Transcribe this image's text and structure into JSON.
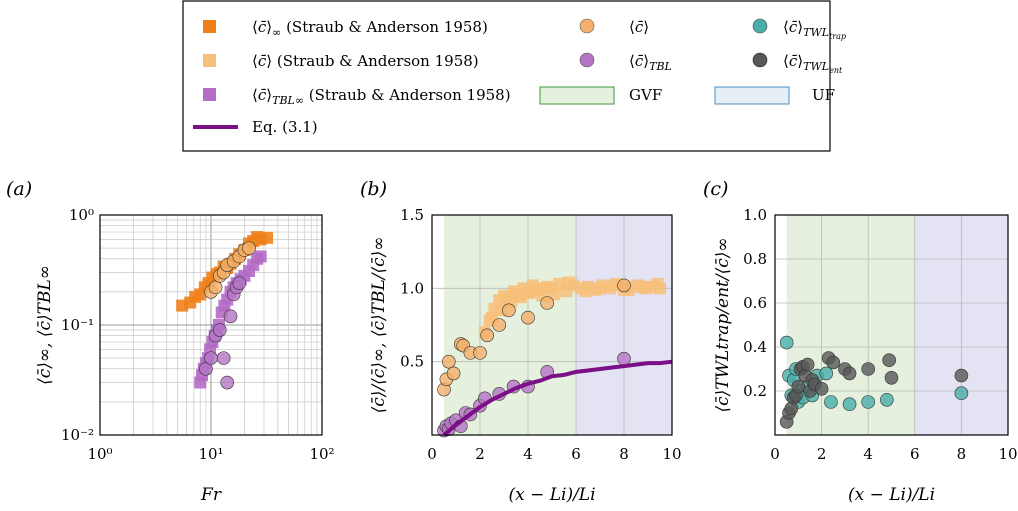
{
  "colors": {
    "orange_dark": "#f07f1a",
    "orange_light": "#f7c07a",
    "purple_light": "#b46cc6",
    "purple_dark": "#7b0f87",
    "orange_circle": "#f4b06a",
    "purple_circle": "#b575c4",
    "teal": "#49ada9",
    "grey": "#575757",
    "gvf_fill": "#e5f1de",
    "gvf_edge": "#3a9a3a",
    "uf_fill": "#e6eef6",
    "uf_edge": "#4a8fc4",
    "uf_region": "#e4e3f4"
  },
  "legend": {
    "items": [
      {
        "key": "c_inf_SA",
        "label": "⟨c̄⟩∞ (Straub & Anderson  1958)",
        "marker": "square",
        "color": "orange_dark"
      },
      {
        "key": "c_SA",
        "label": "⟨c̄⟩ (Straub & Anderson  1958)",
        "marker": "square",
        "color": "orange_light"
      },
      {
        "key": "c_TBLinf_SA",
        "label": "⟨c̄⟩TBL∞ (Straub & Anderson  1958)",
        "marker": "square",
        "color": "purple_light"
      },
      {
        "key": "eq31",
        "label": "Eq. (3.1)",
        "marker": "line",
        "color": "purple_dark"
      },
      {
        "key": "c",
        "label": "⟨c̄⟩",
        "marker": "circle",
        "color": "orange_circle"
      },
      {
        "key": "c_TBL",
        "label": "⟨c̄⟩TBL",
        "marker": "circle",
        "color": "purple_circle"
      },
      {
        "key": "gvf",
        "label": "GVF",
        "marker": "rect",
        "color": "gvf_fill"
      },
      {
        "key": "c_trap",
        "label": "⟨c̄⟩TWLtrap",
        "marker": "circle",
        "color": "teal"
      },
      {
        "key": "c_ent",
        "label": "⟨c̄⟩TWLent",
        "marker": "circle",
        "color": "grey"
      },
      {
        "key": "uf",
        "label": "UF",
        "marker": "rect",
        "color": "uf_fill"
      }
    ]
  },
  "chart_data": [
    {
      "panel": "(a)",
      "type": "scatter",
      "xlabel": "Fr",
      "ylabel": "⟨c̄⟩∞, ⟨c̄⟩TBL∞",
      "xscale": "log",
      "yscale": "log",
      "xlim": [
        1,
        100
      ],
      "ylim": [
        0.01,
        1
      ],
      "xticks": [
        "10⁰",
        "10¹",
        "10²"
      ],
      "yticks": [
        "10⁻²",
        "10⁻¹",
        "10⁰"
      ],
      "grid": true,
      "series": [
        {
          "key": "c_inf_SA",
          "marker": "square",
          "color": "orange_dark",
          "x": [
            5.5,
            6.5,
            7.2,
            8.0,
            8.8,
            9.5,
            10.3,
            11.2,
            12.0,
            13.0,
            14.0,
            15.0,
            16.5,
            18.0,
            20.0,
            22.0,
            24.0,
            26.0,
            28.0,
            32.0
          ],
          "y": [
            0.15,
            0.16,
            0.18,
            0.19,
            0.22,
            0.24,
            0.27,
            0.29,
            0.3,
            0.34,
            0.33,
            0.36,
            0.4,
            0.44,
            0.48,
            0.55,
            0.58,
            0.63,
            0.6,
            0.62
          ]
        },
        {
          "key": "c_TBLinf_SA",
          "marker": "square",
          "color": "purple_light",
          "x": [
            8.0,
            8.3,
            8.6,
            9.0,
            9.4,
            9.8,
            10.3,
            10.8,
            11.3,
            11.8,
            12.5,
            13.2,
            14.0,
            15.0,
            16.0,
            17.0,
            18.5,
            20.0,
            22.0,
            24.0,
            26.0,
            28.0
          ],
          "y": [
            0.03,
            0.035,
            0.04,
            0.045,
            0.05,
            0.06,
            0.07,
            0.08,
            0.09,
            0.1,
            0.13,
            0.15,
            0.17,
            0.2,
            0.22,
            0.24,
            0.26,
            0.28,
            0.31,
            0.35,
            0.4,
            0.42
          ]
        },
        {
          "key": "c",
          "marker": "circle",
          "color": "orange_circle",
          "x": [
            10.0,
            11.0,
            12.0,
            13.0,
            14.0,
            16.0,
            18.0,
            20.0,
            22.0
          ],
          "y": [
            0.2,
            0.22,
            0.28,
            0.3,
            0.35,
            0.38,
            0.42,
            0.48,
            0.5
          ]
        },
        {
          "key": "c_TBL",
          "marker": "circle",
          "color": "purple_circle",
          "x": [
            9.0,
            10.0,
            11.0,
            12.0,
            13.0,
            14.0,
            15.0,
            16.0,
            17.0,
            18.0
          ],
          "y": [
            0.04,
            0.05,
            0.08,
            0.09,
            0.05,
            0.03,
            0.12,
            0.19,
            0.22,
            0.24
          ]
        }
      ]
    },
    {
      "panel": "(b)",
      "type": "scatter",
      "xlabel": "(x − Li)/Li",
      "ylabel": "⟨c̄⟩/⟨c̄⟩∞, ⟨c̄⟩TBL/⟨c̄⟩∞",
      "xlim": [
        0,
        10
      ],
      "ylim": [
        0,
        1.5
      ],
      "xticks": [
        "0",
        "2",
        "4",
        "6",
        "8",
        "10"
      ],
      "yticks": [
        "0.5",
        "1.0",
        "1.5"
      ],
      "regions": [
        {
          "key": "gvf",
          "from": 0.5,
          "to": 6.0
        },
        {
          "key": "uf",
          "from": 6.0,
          "to": 10.0
        }
      ],
      "grid": true,
      "series": [
        {
          "key": "c_SA",
          "marker": "square",
          "color": "orange_light",
          "x": [
            2.2,
            2.4,
            2.6,
            2.8,
            3.0,
            3.2,
            3.4,
            3.6,
            3.8,
            4.0,
            4.2,
            4.4,
            4.6,
            4.8,
            5.0,
            5.3,
            5.6,
            5.9,
            6.2,
            6.5,
            6.8,
            7.1,
            7.4,
            7.7,
            8.0,
            8.3,
            8.6,
            8.9,
            9.2,
            9.5,
            2.5,
            2.9,
            3.3,
            3.7,
            4.1,
            4.5,
            5.1,
            5.7,
            6.4,
            7.0,
            7.6,
            8.2,
            8.8,
            9.4
          ],
          "y": [
            0.7,
            0.78,
            0.86,
            0.92,
            0.95,
            0.93,
            0.98,
            0.96,
            1.0,
            0.97,
            1.02,
            0.99,
            0.95,
            1.01,
            1.0,
            1.03,
            0.98,
            1.02,
            1.0,
            1.01,
            0.99,
            1.02,
            1.0,
            1.03,
            0.99,
            1.01,
            1.02,
            1.0,
            1.01,
            1.0,
            0.8,
            0.85,
            0.91,
            0.94,
            0.97,
            1.0,
            0.96,
            1.04,
            0.98,
            1.0,
            1.02,
            0.99,
            1.01,
            1.03
          ]
        },
        {
          "key": "c",
          "marker": "circle",
          "color": "orange_circle",
          "x": [
            0.5,
            0.6,
            0.7,
            0.9,
            1.2,
            1.3,
            1.6,
            2.0,
            2.3,
            2.8,
            3.2,
            4.0,
            4.8,
            8.0
          ],
          "y": [
            0.31,
            0.38,
            0.5,
            0.42,
            0.62,
            0.61,
            0.56,
            0.56,
            0.68,
            0.75,
            0.85,
            0.8,
            0.9,
            1.02
          ]
        },
        {
          "key": "c_TBL",
          "marker": "circle",
          "color": "purple_circle",
          "x": [
            0.5,
            0.6,
            0.7,
            0.8,
            1.0,
            1.2,
            1.4,
            1.6,
            2.0,
            2.2,
            2.8,
            3.4,
            4.0,
            4.8,
            8.0
          ],
          "y": [
            0.03,
            0.06,
            0.04,
            0.08,
            0.1,
            0.06,
            0.15,
            0.14,
            0.2,
            0.25,
            0.28,
            0.33,
            0.33,
            0.43,
            0.52
          ]
        },
        {
          "key": "eq31",
          "type": "line",
          "color": "purple_dark",
          "x": [
            0.5,
            1.0,
            1.5,
            2.0,
            2.5,
            3.0,
            3.5,
            4.0,
            4.5,
            5.0,
            5.5,
            6.0,
            6.5,
            7.0,
            7.5,
            8.0,
            8.5,
            9.0,
            9.5,
            10.0
          ],
          "y": [
            0.0,
            0.07,
            0.13,
            0.19,
            0.24,
            0.28,
            0.32,
            0.35,
            0.37,
            0.4,
            0.41,
            0.43,
            0.44,
            0.45,
            0.46,
            0.47,
            0.48,
            0.49,
            0.49,
            0.5
          ]
        }
      ]
    },
    {
      "panel": "(c)",
      "type": "scatter",
      "xlabel": "(x − Li)/Li",
      "ylabel": "⟨c̄⟩TWLtrap/ent/⟨c̄⟩∞",
      "xlim": [
        0,
        10
      ],
      "ylim": [
        0,
        1.0
      ],
      "xticks": [
        "0",
        "2",
        "4",
        "6",
        "8",
        "10"
      ],
      "yticks": [
        "0.2",
        "0.4",
        "0.6",
        "0.8",
        "1.0"
      ],
      "regions": [
        {
          "key": "gvf",
          "from": 0.5,
          "to": 6.0
        },
        {
          "key": "uf",
          "from": 6.0,
          "to": 10.0
        }
      ],
      "grid": true,
      "series": [
        {
          "key": "c_trap",
          "marker": "circle",
          "color": "teal",
          "x": [
            0.5,
            0.6,
            0.7,
            0.8,
            0.9,
            1.0,
            1.1,
            1.2,
            1.4,
            1.6,
            1.8,
            2.2,
            2.4,
            3.2,
            4.0,
            4.8,
            8.0
          ],
          "y": [
            0.42,
            0.27,
            0.18,
            0.25,
            0.3,
            0.15,
            0.2,
            0.17,
            0.22,
            0.18,
            0.27,
            0.28,
            0.15,
            0.14,
            0.15,
            0.16,
            0.19
          ]
        },
        {
          "key": "c_ent",
          "marker": "circle",
          "color": "grey",
          "x": [
            0.5,
            0.6,
            0.7,
            0.8,
            0.9,
            1.0,
            1.1,
            1.2,
            1.3,
            1.4,
            1.5,
            1.6,
            1.7,
            2.0,
            2.3,
            2.5,
            3.0,
            3.2,
            4.0,
            4.9,
            5.0,
            8.0
          ],
          "y": [
            0.06,
            0.1,
            0.12,
            0.17,
            0.18,
            0.22,
            0.3,
            0.31,
            0.27,
            0.32,
            0.2,
            0.25,
            0.23,
            0.21,
            0.35,
            0.33,
            0.3,
            0.28,
            0.3,
            0.34,
            0.26,
            0.27
          ]
        }
      ]
    }
  ]
}
